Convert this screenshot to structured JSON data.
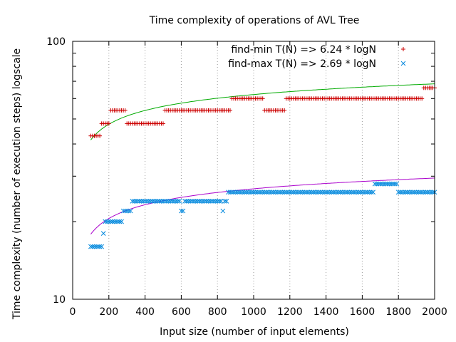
{
  "chart_data": {
    "type": "scatter",
    "title": "Time complexity of operations of AVL Tree",
    "xlabel": "Input size (number of input elements)",
    "ylabel": "Time complexity (number of execution steps) logscale",
    "xlim": [
      0,
      2000
    ],
    "ylim": [
      10,
      100
    ],
    "y_scale": "log",
    "x_grid": true,
    "legend_position": "top-right",
    "x_ticks": [
      "0",
      "200",
      "400",
      "600",
      "800",
      "1000",
      "1200",
      "1400",
      "1600",
      "1800",
      "2000"
    ],
    "y_ticks": [
      "10",
      "100"
    ],
    "series": [
      {
        "name": "find-min T(N) => 6.24 * logN",
        "marker": "plus",
        "color": "#cc0000",
        "fit_color": "#00aa00",
        "fit_coefficient": 6.24,
        "segments": [
          {
            "x_from": 100,
            "x_to": 160,
            "y": 43
          },
          {
            "x_from": 160,
            "x_to": 210,
            "y": 48
          },
          {
            "x_from": 210,
            "x_to": 300,
            "y": 54
          },
          {
            "x_from": 300,
            "x_to": 510,
            "y": 48
          },
          {
            "x_from": 510,
            "x_to": 880,
            "y": 54
          },
          {
            "x_from": 880,
            "x_to": 1060,
            "y": 60
          },
          {
            "x_from": 1060,
            "x_to": 1180,
            "y": 54
          },
          {
            "x_from": 1180,
            "x_to": 1940,
            "y": 60
          },
          {
            "x_from": 1940,
            "x_to": 2000,
            "y": 66
          }
        ]
      },
      {
        "name": "find-max T(N) => 2.69 * logN",
        "marker": "cross",
        "color": "#0088dd",
        "fit_color": "#aa00cc",
        "fit_coefficient": 2.69,
        "segments": [
          {
            "x_from": 100,
            "x_to": 170,
            "y": 16
          },
          {
            "x_from": 170,
            "x_to": 180,
            "y": 18
          },
          {
            "x_from": 180,
            "x_to": 280,
            "y": 20
          },
          {
            "x_from": 280,
            "x_to": 330,
            "y": 22
          },
          {
            "x_from": 330,
            "x_to": 600,
            "y": 24
          },
          {
            "x_from": 600,
            "x_to": 620,
            "y": 22
          },
          {
            "x_from": 620,
            "x_to": 830,
            "y": 24
          },
          {
            "x_from": 830,
            "x_to": 840,
            "y": 22
          },
          {
            "x_from": 840,
            "x_to": 860,
            "y": 24
          },
          {
            "x_from": 860,
            "x_to": 1670,
            "y": 26
          },
          {
            "x_from": 1670,
            "x_to": 1800,
            "y": 28
          },
          {
            "x_from": 1800,
            "x_to": 2000,
            "y": 26
          }
        ]
      }
    ]
  }
}
